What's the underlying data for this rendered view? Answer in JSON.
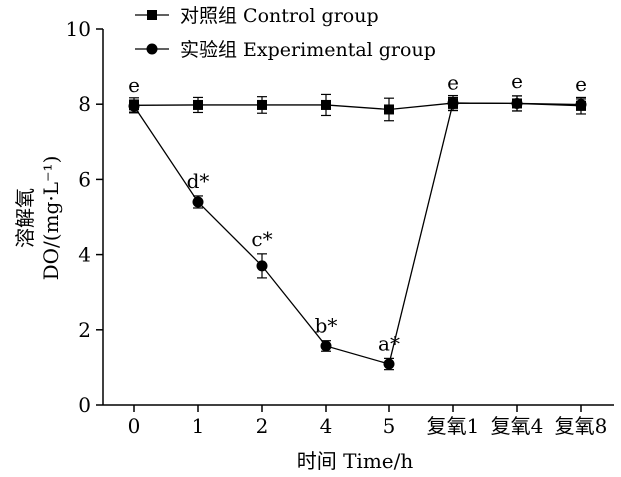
{
  "chart_data": {
    "type": "line",
    "xlabel": "时间 Time/h",
    "ylabel_line1": "溶解氧",
    "ylabel_line2": "DO/(mg·L⁻¹)",
    "categories": [
      "0",
      "1",
      "2",
      "4",
      "5",
      "复氧1",
      "复氧4",
      "复氧8"
    ],
    "ylim": [
      0,
      10
    ],
    "yticks": [
      "0",
      "2",
      "4",
      "6",
      "8",
      "10"
    ],
    "grid": false,
    "legend_position": "top-left",
    "series": [
      {
        "name": "对照组 Control group",
        "marker": "square",
        "values": [
          7.97,
          7.98,
          7.98,
          7.98,
          7.86,
          8.03,
          8.02,
          7.96
        ],
        "errors": [
          0.2,
          0.2,
          0.22,
          0.28,
          0.3,
          0.2,
          0.2,
          0.22
        ],
        "labels": [
          "",
          "",
          "",
          "",
          "",
          "",
          "",
          ""
        ]
      },
      {
        "name": "实验组 Experimental group",
        "marker": "circle",
        "values": [
          7.95,
          5.4,
          3.7,
          1.57,
          1.09,
          8.03,
          8.02,
          7.99
        ],
        "errors": [
          0.16,
          0.16,
          0.32,
          0.14,
          0.15,
          0.15,
          0.2,
          0.15
        ],
        "labels": [
          "e",
          "d*",
          "c*",
          "b*",
          "a*",
          "e",
          "e",
          "e"
        ]
      }
    ]
  }
}
